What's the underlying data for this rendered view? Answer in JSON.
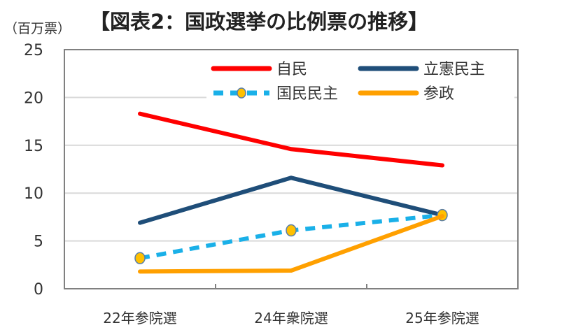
{
  "chart_data": {
    "type": "line",
    "title": "【図表2：国政選挙の比例票の推移】",
    "ylabel": "（百万票）",
    "xlabel": "",
    "categories": [
      "22年参院選",
      "24年衆院選",
      "25年参院選"
    ],
    "ylim": [
      0,
      25
    ],
    "yticks": [
      0,
      5,
      10,
      15,
      20,
      25
    ],
    "grid": true,
    "legend_position": "top-right",
    "series": [
      {
        "name": "自民",
        "values": [
          18.3,
          14.6,
          12.9
        ],
        "color": "#ff0000",
        "style": "solid",
        "markers": false
      },
      {
        "name": "立憲民主",
        "values": [
          6.9,
          11.6,
          7.7
        ],
        "color": "#1f4e79",
        "style": "solid",
        "markers": false
      },
      {
        "name": "国民民主",
        "values": [
          3.2,
          6.1,
          7.7
        ],
        "color": "#1ab0e8",
        "style": "dashed",
        "markers": true,
        "marker_color": "#ffc000"
      },
      {
        "name": "参政",
        "values": [
          1.8,
          1.9,
          7.6
        ],
        "color": "#ffa000",
        "style": "solid",
        "markers": false
      }
    ]
  }
}
